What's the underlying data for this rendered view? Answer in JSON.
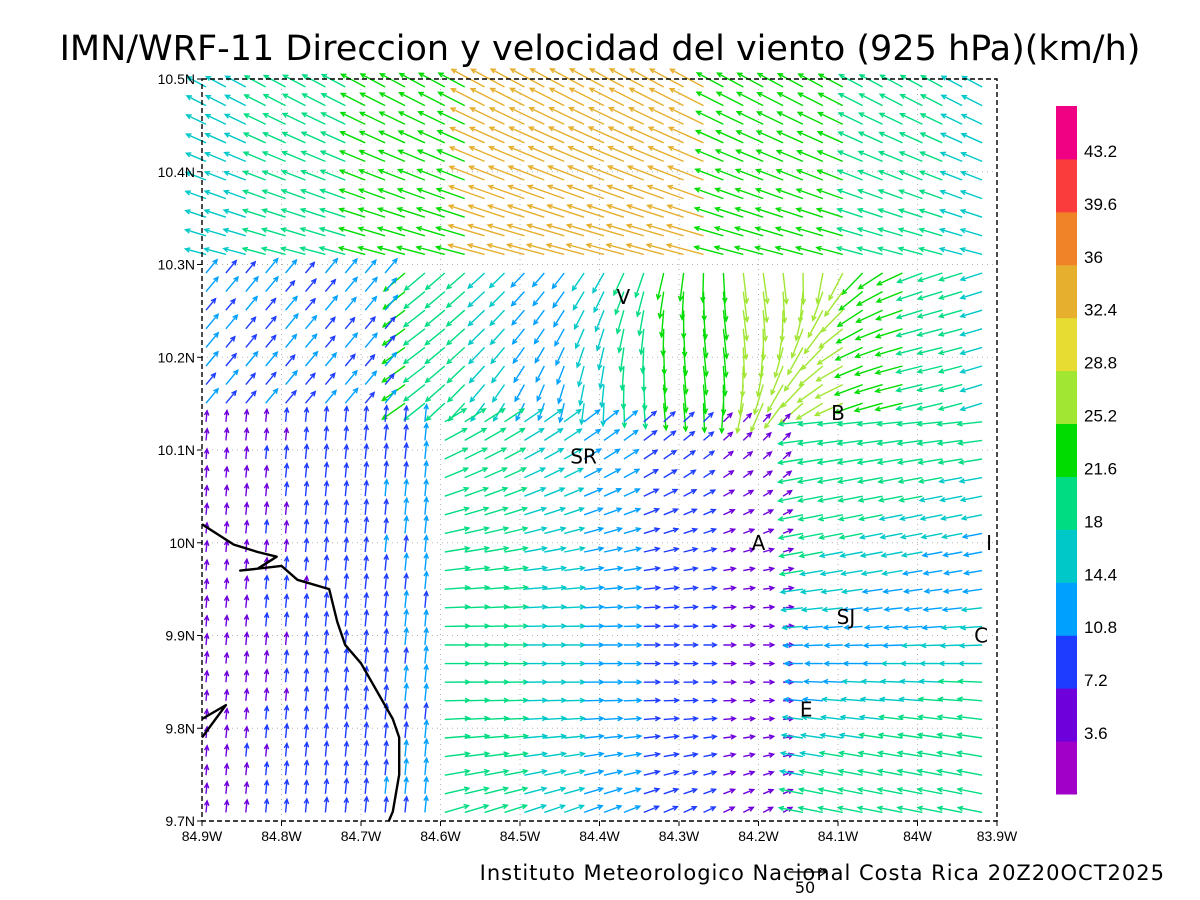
{
  "title": "IMN/WRF-11 Direccion y velocidad del viento (925 hPa)(km/h)",
  "footer": "Instituto Meteorologico Nacional Costa Rica  20Z20OCT2025",
  "scale_arrow_label": "50",
  "map": {
    "lon_range": [
      -84.9,
      -83.9
    ],
    "lat_range": [
      9.7,
      10.5
    ],
    "grid": true,
    "x_ticks": [
      "84.9W",
      "84.8W",
      "84.7W",
      "84.6W",
      "84.5W",
      "84.4W",
      "84.3W",
      "84.2W",
      "84.1W",
      "84W",
      "83.9W"
    ],
    "y_ticks": [
      "9.7N",
      "9.8N",
      "9.9N",
      "10N",
      "10.1N",
      "10.2N",
      "10.3N",
      "10.4N",
      "10.5N"
    ]
  },
  "colorbar": {
    "labels": [
      "3.6",
      "7.2",
      "10.8",
      "14.4",
      "18",
      "21.6",
      "25.2",
      "28.8",
      "32.4",
      "36",
      "39.6",
      "43.2"
    ],
    "colors": [
      "#a000c8",
      "#6e00dc",
      "#1e3cff",
      "#00a0ff",
      "#00c8c8",
      "#00dc82",
      "#00dc00",
      "#a0e632",
      "#e6dc32",
      "#e6af2d",
      "#f08228",
      "#fa3c3c",
      "#f00082"
    ]
  },
  "cities": [
    {
      "label": "V",
      "lon": -84.37,
      "lat": 10.265
    },
    {
      "label": "SR",
      "lon": -84.42,
      "lat": 10.093
    },
    {
      "label": "B",
      "lon": -84.1,
      "lat": 10.14
    },
    {
      "label": "A",
      "lon": -84.2,
      "lat": 10.0
    },
    {
      "label": "I",
      "lon": -83.91,
      "lat": 10.0
    },
    {
      "label": "SJ",
      "lon": -84.09,
      "lat": 9.92
    },
    {
      "label": "C",
      "lon": -83.92,
      "lat": 9.9
    },
    {
      "label": "E",
      "lon": -84.14,
      "lat": 9.82
    }
  ],
  "coastline": {
    "lines": [
      [
        [
          -84.9,
          10.02
        ],
        [
          -84.86,
          9.998
        ],
        [
          -84.83,
          9.99
        ],
        [
          -84.806,
          9.985
        ],
        [
          -84.83,
          9.972
        ],
        [
          -84.852,
          9.97
        ],
        [
          -84.8,
          9.975
        ],
        [
          -84.78,
          9.96
        ],
        [
          -84.74,
          9.95
        ],
        [
          -84.73,
          9.915
        ],
        [
          -84.72,
          9.89
        ],
        [
          -84.7,
          9.87
        ],
        [
          -84.68,
          9.84
        ],
        [
          -84.66,
          9.81
        ],
        [
          -84.652,
          9.79
        ],
        [
          -84.652,
          9.75
        ],
        [
          -84.66,
          9.71
        ],
        [
          -84.665,
          9.7
        ]
      ],
      [
        [
          -84.9,
          9.81
        ],
        [
          -84.87,
          9.825
        ],
        [
          -84.9,
          9.79
        ]
      ]
    ]
  }
}
